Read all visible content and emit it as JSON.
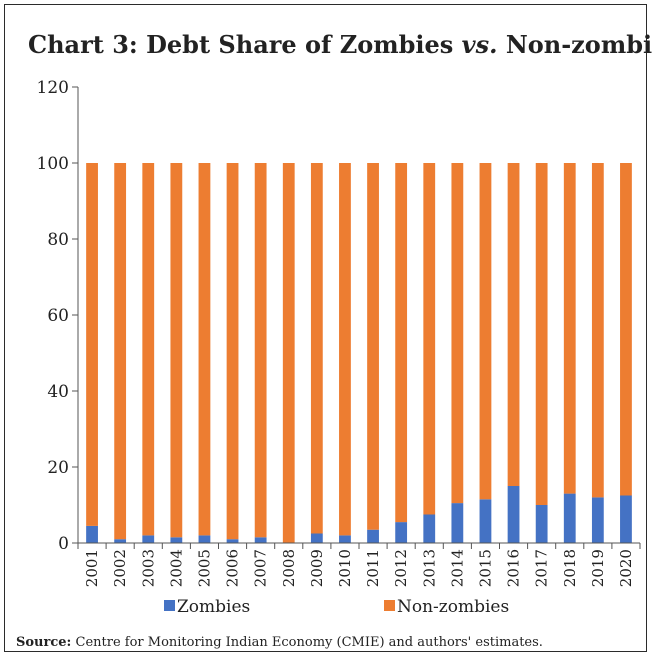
{
  "title": {
    "part1": "Chart 3: Debt Share of Zombies ",
    "part2": "vs.",
    "part3": " Non-zombies"
  },
  "source": {
    "label": "Source:",
    "text": " Centre for Monitoring Indian Economy (CMIE) and authors' estimates."
  },
  "chart_data": {
    "type": "bar",
    "stacked": true,
    "categories": [
      "2001",
      "2002",
      "2003",
      "2004",
      "2005",
      "2006",
      "2007",
      "2008",
      "2009",
      "2010",
      "2011",
      "2012",
      "2013",
      "2014",
      "2015",
      "2016",
      "2017",
      "2018",
      "2019",
      "2020"
    ],
    "series": [
      {
        "name": "Zombies",
        "color": "#4472c4",
        "values": [
          4.5,
          1.0,
          2.0,
          1.5,
          2.0,
          1.0,
          1.5,
          0.0,
          2.5,
          2.0,
          3.5,
          5.5,
          7.5,
          10.5,
          11.5,
          15.0,
          10.0,
          13.0,
          12.0,
          12.5
        ]
      },
      {
        "name": "Non-zombies",
        "color": "#ed7d31",
        "values": [
          95.5,
          99.0,
          98.0,
          98.5,
          98.0,
          99.0,
          98.5,
          100.0,
          97.5,
          98.0,
          96.5,
          94.5,
          92.5,
          89.5,
          88.5,
          85.0,
          90.0,
          87.0,
          88.0,
          87.5
        ]
      }
    ],
    "ylim": [
      0,
      120
    ],
    "yticks": [
      0,
      20,
      40,
      60,
      80,
      100,
      120
    ],
    "xlabel": "",
    "ylabel": "",
    "grid": false,
    "legend": "bottom"
  }
}
